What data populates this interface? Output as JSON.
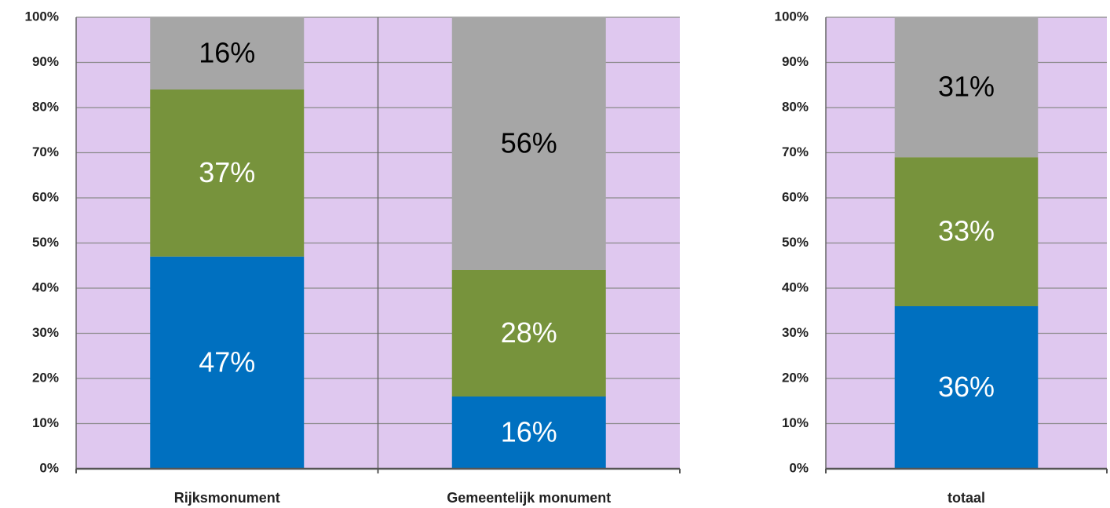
{
  "chart_data": [
    {
      "type": "bar",
      "stacked": true,
      "categories": [
        "Rijksmonument",
        "Gemeentelijk monument"
      ],
      "series": [
        {
          "color": "#0070c0",
          "label_color": "#ffffff",
          "values": [
            47,
            16
          ],
          "value_labels": [
            "47%",
            "16%"
          ]
        },
        {
          "color": "#77933c",
          "label_color": "#ffffff",
          "values": [
            37,
            28
          ],
          "value_labels": [
            "37%",
            "28%"
          ]
        },
        {
          "color": "#a6a6a6",
          "label_color": "#000000",
          "values": [
            16,
            56
          ],
          "value_labels": [
            "16%",
            "56%"
          ]
        }
      ],
      "ylim": [
        0,
        100
      ],
      "yticks": [
        {
          "value": 0,
          "label": "0%"
        },
        {
          "value": 10,
          "label": "10%"
        },
        {
          "value": 20,
          "label": "20%"
        },
        {
          "value": 30,
          "label": "30%"
        },
        {
          "value": 40,
          "label": "40%"
        },
        {
          "value": 50,
          "label": "50%"
        },
        {
          "value": 60,
          "label": "60%"
        },
        {
          "value": 70,
          "label": "70%"
        },
        {
          "value": 80,
          "label": "80%"
        },
        {
          "value": 90,
          "label": "90%"
        },
        {
          "value": 100,
          "label": "100%"
        }
      ],
      "grid": true,
      "background": "#dfc8ef"
    },
    {
      "type": "bar",
      "stacked": true,
      "categories": [
        "totaal"
      ],
      "series": [
        {
          "color": "#0070c0",
          "label_color": "#ffffff",
          "values": [
            36
          ],
          "value_labels": [
            "36%"
          ]
        },
        {
          "color": "#77933c",
          "label_color": "#ffffff",
          "values": [
            33
          ],
          "value_labels": [
            "33%"
          ]
        },
        {
          "color": "#a6a6a6",
          "label_color": "#000000",
          "values": [
            31
          ],
          "value_labels": [
            "31%"
          ]
        }
      ],
      "ylim": [
        0,
        100
      ],
      "yticks": [
        {
          "value": 0,
          "label": "0%"
        },
        {
          "value": 10,
          "label": "10%"
        },
        {
          "value": 20,
          "label": "20%"
        },
        {
          "value": 30,
          "label": "30%"
        },
        {
          "value": 40,
          "label": "40%"
        },
        {
          "value": 50,
          "label": "50%"
        },
        {
          "value": 60,
          "label": "60%"
        },
        {
          "value": 70,
          "label": "70%"
        },
        {
          "value": 80,
          "label": "80%"
        },
        {
          "value": 90,
          "label": "90%"
        },
        {
          "value": 100,
          "label": "100%"
        }
      ],
      "grid": true,
      "background": "#dfc8ef"
    }
  ]
}
